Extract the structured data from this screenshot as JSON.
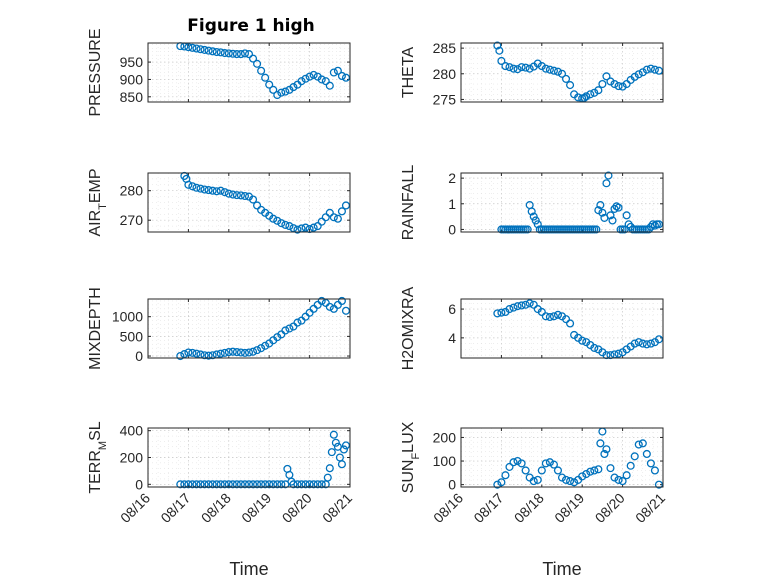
{
  "figure": {
    "title": "Figure 1 high",
    "marker_color": "#0072bd",
    "x_axis": {
      "label": "Time",
      "ticks": [
        "08/16",
        "08/17",
        "08/18",
        "08/19",
        "08/20",
        "08/21"
      ]
    }
  },
  "chart_data": [
    {
      "type": "scatter",
      "title": "Figure 1 high",
      "ylabel": "PRESSURE",
      "ylabel_parts": [
        {
          "text": "PRESSURE",
          "sub": false
        }
      ],
      "yticks": [
        850,
        900,
        950
      ],
      "ylim": [
        835,
        1005
      ],
      "x": [
        0.8,
        0.9,
        1.0,
        1.1,
        1.2,
        1.3,
        1.4,
        1.5,
        1.6,
        1.7,
        1.8,
        1.9,
        2.0,
        2.1,
        2.2,
        2.3,
        2.4,
        2.5,
        2.6,
        2.7,
        2.8,
        2.9,
        3.0,
        3.1,
        3.2,
        3.3,
        3.4,
        3.5,
        3.6,
        3.7,
        3.8,
        3.9,
        4.0,
        4.1,
        4.2,
        4.3,
        4.4,
        4.5,
        4.6,
        4.7,
        4.8,
        4.9
      ],
      "y": [
        996,
        995,
        993,
        991,
        989,
        987,
        985,
        983,
        981,
        979,
        978,
        976,
        975,
        974,
        973,
        973,
        975,
        973,
        960,
        945,
        925,
        905,
        885,
        870,
        855,
        862,
        865,
        870,
        878,
        885,
        895,
        902,
        908,
        913,
        908,
        900,
        895,
        882,
        920,
        925,
        910,
        905
      ]
    },
    {
      "type": "scatter",
      "title": "",
      "ylabel": "THETA",
      "ylabel_parts": [
        {
          "text": "THETA",
          "sub": false
        }
      ],
      "yticks": [
        275,
        280,
        285
      ],
      "ylim": [
        274.5,
        286
      ],
      "x": [
        0.9,
        0.95,
        1.0,
        1.1,
        1.2,
        1.3,
        1.4,
        1.5,
        1.6,
        1.7,
        1.8,
        1.9,
        2.0,
        2.1,
        2.2,
        2.3,
        2.4,
        2.5,
        2.6,
        2.7,
        2.8,
        2.9,
        3.0,
        3.05,
        3.1,
        3.2,
        3.3,
        3.4,
        3.5,
        3.6,
        3.7,
        3.8,
        3.9,
        4.0,
        4.1,
        4.2,
        4.3,
        4.4,
        4.5,
        4.6,
        4.7,
        4.8,
        4.9
      ],
      "y": [
        285.5,
        284.5,
        282.5,
        281.5,
        281.3,
        281.0,
        280.9,
        281.3,
        281.2,
        281.0,
        281.4,
        282.0,
        281.5,
        281.0,
        280.8,
        280.6,
        280.4,
        280.0,
        279.0,
        277.8,
        276.0,
        275.4,
        275.2,
        275.3,
        275.6,
        276.0,
        276.3,
        276.8,
        278.0,
        279.5,
        278.5,
        278.0,
        277.6,
        277.5,
        278.0,
        278.8,
        279.4,
        279.9,
        280.3,
        280.8,
        281.0,
        280.8,
        280.6
      ]
    },
    {
      "type": "scatter",
      "title": "",
      "ylabel": "AIR_TEMP",
      "ylabel_parts": [
        {
          "text": "AIR",
          "sub": false
        },
        {
          "text": "T",
          "sub": true
        },
        {
          "text": "EMP",
          "sub": false
        }
      ],
      "yticks": [
        270,
        280
      ],
      "ylim": [
        266,
        286
      ],
      "x": [
        0.9,
        0.95,
        1.0,
        1.1,
        1.2,
        1.3,
        1.4,
        1.5,
        1.6,
        1.7,
        1.8,
        1.9,
        2.0,
        2.1,
        2.2,
        2.3,
        2.4,
        2.5,
        2.6,
        2.7,
        2.8,
        2.9,
        3.0,
        3.1,
        3.2,
        3.3,
        3.4,
        3.5,
        3.6,
        3.7,
        3.8,
        3.9,
        4.0,
        4.1,
        4.2,
        4.3,
        4.4,
        4.5,
        4.6,
        4.7,
        4.8,
        4.9
      ],
      "y": [
        285.0,
        284.0,
        282.0,
        281.5,
        281.0,
        280.7,
        280.4,
        280.2,
        280.0,
        279.8,
        280.0,
        279.5,
        279.0,
        278.7,
        278.5,
        278.4,
        278.2,
        278.0,
        277.0,
        275.0,
        273.5,
        272.5,
        271.5,
        270.5,
        269.8,
        269.0,
        268.4,
        268.0,
        267.3,
        266.8,
        267.2,
        267.5,
        267.0,
        267.5,
        268.0,
        269.5,
        271.0,
        272.5,
        271.0,
        270.5,
        273.0,
        275.0
      ]
    },
    {
      "type": "scatter",
      "title": "",
      "ylabel": "RAINFALL",
      "ylabel_parts": [
        {
          "text": "RAINFALL",
          "sub": false
        }
      ],
      "yticks": [
        0,
        1,
        2
      ],
      "ylim": [
        -0.1,
        2.2
      ],
      "x": [
        1.0,
        1.05,
        1.1,
        1.15,
        1.2,
        1.25,
        1.3,
        1.35,
        1.4,
        1.45,
        1.5,
        1.55,
        1.6,
        1.65,
        1.7,
        1.75,
        1.8,
        1.85,
        1.9,
        1.95,
        2.0,
        2.05,
        2.1,
        2.15,
        2.2,
        2.25,
        2.3,
        2.35,
        2.4,
        2.45,
        2.5,
        2.55,
        2.6,
        2.65,
        2.7,
        2.75,
        2.8,
        2.85,
        2.9,
        2.95,
        3.0,
        3.05,
        3.1,
        3.15,
        3.2,
        3.25,
        3.3,
        3.35,
        3.4,
        3.45,
        3.5,
        3.55,
        3.6,
        3.65,
        3.7,
        3.75,
        3.8,
        3.85,
        3.9,
        3.95,
        4.0,
        4.05,
        4.1,
        4.15,
        4.2,
        4.25,
        4.3,
        4.35,
        4.4,
        4.45,
        4.5,
        4.55,
        4.6,
        4.65,
        4.7,
        4.75,
        4.8,
        4.85,
        4.9
      ],
      "y": [
        0,
        0,
        0,
        0,
        0,
        0,
        0,
        0,
        0,
        0,
        0,
        0,
        0,
        0,
        0.95,
        0.7,
        0.5,
        0.35,
        0.2,
        0,
        0,
        0,
        0,
        0,
        0,
        0,
        0,
        0,
        0,
        0,
        0,
        0,
        0,
        0,
        0,
        0,
        0,
        0,
        0,
        0,
        0,
        0,
        0,
        0,
        0,
        0,
        0,
        0,
        0.75,
        0.95,
        0.65,
        0.45,
        1.8,
        2.1,
        0.55,
        0.35,
        0.8,
        0.9,
        0.85,
        0,
        0,
        0,
        0.55,
        0.2,
        0.1,
        0,
        0,
        0,
        0,
        0,
        0,
        0,
        0,
        0,
        0.1,
        0.2,
        0.15,
        0.2,
        0.2
      ]
    },
    {
      "type": "scatter",
      "title": "",
      "ylabel": "MIXDEPTH",
      "ylabel_parts": [
        {
          "text": "MIXDEPTH",
          "sub": false
        }
      ],
      "yticks": [
        0,
        500,
        1000
      ],
      "ylim": [
        -50,
        1450
      ],
      "x": [
        0.8,
        0.9,
        1.0,
        1.1,
        1.2,
        1.3,
        1.4,
        1.5,
        1.6,
        1.7,
        1.8,
        1.9,
        2.0,
        2.1,
        2.2,
        2.3,
        2.4,
        2.5,
        2.6,
        2.7,
        2.8,
        2.9,
        3.0,
        3.1,
        3.2,
        3.3,
        3.4,
        3.5,
        3.6,
        3.7,
        3.8,
        3.9,
        4.0,
        4.1,
        4.2,
        4.3,
        4.4,
        4.5,
        4.6,
        4.7,
        4.8,
        4.9
      ],
      "y": [
        0,
        50,
        90,
        80,
        60,
        40,
        20,
        10,
        20,
        40,
        60,
        80,
        100,
        110,
        100,
        90,
        80,
        90,
        110,
        150,
        200,
        260,
        320,
        400,
        480,
        550,
        650,
        700,
        750,
        850,
        900,
        1000,
        1100,
        1200,
        1300,
        1400,
        1350,
        1250,
        1200,
        1300,
        1400,
        1150
      ]
    },
    {
      "type": "scatter",
      "title": "",
      "ylabel": "H2OMIXRA",
      "ylabel_parts": [
        {
          "text": "H2OMIXRA",
          "sub": false
        }
      ],
      "yticks": [
        4,
        6
      ],
      "ylim": [
        2.6,
        6.7
      ],
      "x": [
        0.9,
        1.0,
        1.1,
        1.2,
        1.3,
        1.4,
        1.5,
        1.6,
        1.7,
        1.8,
        1.9,
        2.0,
        2.1,
        2.2,
        2.3,
        2.4,
        2.5,
        2.6,
        2.7,
        2.8,
        2.9,
        3.0,
        3.1,
        3.2,
        3.3,
        3.4,
        3.5,
        3.6,
        3.7,
        3.8,
        3.9,
        4.0,
        4.1,
        4.2,
        4.3,
        4.4,
        4.5,
        4.6,
        4.7,
        4.8,
        4.9
      ],
      "y": [
        5.7,
        5.75,
        5.8,
        6.0,
        6.1,
        6.2,
        6.25,
        6.3,
        6.4,
        6.3,
        6.0,
        5.8,
        5.5,
        5.45,
        5.5,
        5.6,
        5.5,
        5.3,
        5.0,
        4.2,
        4.0,
        3.8,
        3.7,
        3.5,
        3.3,
        3.2,
        3.0,
        2.8,
        2.8,
        2.85,
        2.9,
        3.0,
        3.2,
        3.4,
        3.6,
        3.7,
        3.6,
        3.55,
        3.6,
        3.7,
        3.9
      ]
    },
    {
      "type": "scatter",
      "title": "",
      "ylabel": "TERR_MSL",
      "ylabel_parts": [
        {
          "text": "TERR",
          "sub": false
        },
        {
          "text": "M",
          "sub": true
        },
        {
          "text": "SL",
          "sub": false
        }
      ],
      "yticks": [
        0,
        200,
        400
      ],
      "ylim": [
        -20,
        420
      ],
      "x": [
        0.8,
        0.9,
        1.0,
        1.1,
        1.2,
        1.3,
        1.4,
        1.5,
        1.6,
        1.7,
        1.8,
        1.9,
        2.0,
        2.1,
        2.2,
        2.3,
        2.4,
        2.5,
        2.6,
        2.7,
        2.8,
        2.9,
        3.0,
        3.1,
        3.2,
        3.3,
        3.4,
        3.45,
        3.5,
        3.55,
        3.6,
        3.7,
        3.8,
        3.9,
        4.0,
        4.1,
        4.2,
        4.3,
        4.4,
        4.45,
        4.5,
        4.55,
        4.6,
        4.65,
        4.7,
        4.75,
        4.8,
        4.85,
        4.9
      ],
      "y": [
        0,
        0,
        0,
        0,
        0,
        0,
        0,
        0,
        0,
        0,
        0,
        0,
        0,
        0,
        0,
        0,
        0,
        0,
        0,
        0,
        0,
        0,
        0,
        0,
        0,
        0,
        0,
        115,
        70,
        20,
        0,
        0,
        0,
        0,
        0,
        0,
        0,
        0,
        0,
        50,
        120,
        240,
        370,
        310,
        280,
        200,
        150,
        260,
        290
      ]
    },
    {
      "type": "scatter",
      "title": "",
      "ylabel": "SUN_FLUX",
      "ylabel_parts": [
        {
          "text": "SUN",
          "sub": false
        },
        {
          "text": "F",
          "sub": true
        },
        {
          "text": "LUX",
          "sub": false
        }
      ],
      "yticks": [
        0,
        100,
        200
      ],
      "ylim": [
        -10,
        240
      ],
      "x": [
        0.9,
        1.0,
        1.1,
        1.2,
        1.3,
        1.4,
        1.5,
        1.6,
        1.7,
        1.8,
        1.9,
        2.0,
        2.1,
        2.2,
        2.3,
        2.4,
        2.5,
        2.6,
        2.7,
        2.8,
        2.9,
        3.0,
        3.1,
        3.2,
        3.3,
        3.4,
        3.45,
        3.5,
        3.55,
        3.6,
        3.7,
        3.8,
        3.9,
        4.0,
        4.1,
        4.2,
        4.3,
        4.4,
        4.5,
        4.6,
        4.7,
        4.8,
        4.9
      ],
      "y": [
        0,
        10,
        40,
        75,
        95,
        100,
        90,
        60,
        30,
        15,
        20,
        60,
        90,
        95,
        85,
        60,
        30,
        20,
        15,
        10,
        20,
        35,
        45,
        55,
        60,
        65,
        175,
        225,
        130,
        150,
        70,
        30,
        20,
        15,
        40,
        80,
        120,
        170,
        175,
        130,
        90,
        60,
        0
      ]
    }
  ]
}
